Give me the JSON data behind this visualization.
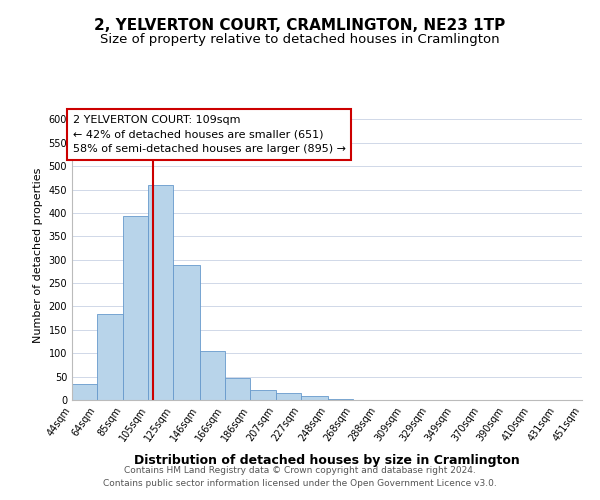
{
  "title": "2, YELVERTON COURT, CRAMLINGTON, NE23 1TP",
  "subtitle": "Size of property relative to detached houses in Cramlington",
  "xlabel": "Distribution of detached houses by size in Cramlington",
  "ylabel": "Number of detached properties",
  "bar_edges": [
    44,
    64,
    85,
    105,
    125,
    146,
    166,
    186,
    207,
    227,
    248,
    268,
    288,
    309,
    329,
    349,
    370,
    390,
    410,
    431,
    451
  ],
  "bar_heights": [
    35,
    183,
    393,
    460,
    289,
    105,
    47,
    21,
    15,
    8,
    2,
    1,
    0,
    0,
    0,
    0,
    0,
    0,
    1,
    0
  ],
  "bar_color": "#b8d4ea",
  "bar_edgecolor": "#6699cc",
  "vline_x": 109,
  "vline_color": "#cc0000",
  "annotation_title": "2 YELVERTON COURT: 109sqm",
  "annotation_line1": "← 42% of detached houses are smaller (651)",
  "annotation_line2": "58% of semi-detached houses are larger (895) →",
  "annotation_box_edgecolor": "#cc0000",
  "annotation_box_facecolor": "#ffffff",
  "ylim": [
    0,
    620
  ],
  "yticks": [
    0,
    50,
    100,
    150,
    200,
    250,
    300,
    350,
    400,
    450,
    500,
    550,
    600
  ],
  "tick_labels": [
    "44sqm",
    "64sqm",
    "85sqm",
    "105sqm",
    "125sqm",
    "146sqm",
    "166sqm",
    "186sqm",
    "207sqm",
    "227sqm",
    "248sqm",
    "268sqm",
    "288sqm",
    "309sqm",
    "329sqm",
    "349sqm",
    "370sqm",
    "390sqm",
    "410sqm",
    "431sqm",
    "451sqm"
  ],
  "footnote1": "Contains HM Land Registry data © Crown copyright and database right 2024.",
  "footnote2": "Contains public sector information licensed under the Open Government Licence v3.0.",
  "background_color": "#ffffff",
  "grid_color": "#d0d8e8",
  "title_fontsize": 11,
  "subtitle_fontsize": 9.5,
  "xlabel_fontsize": 9,
  "ylabel_fontsize": 8,
  "tick_fontsize": 7,
  "footnote_fontsize": 6.5,
  "annotation_fontsize": 8
}
